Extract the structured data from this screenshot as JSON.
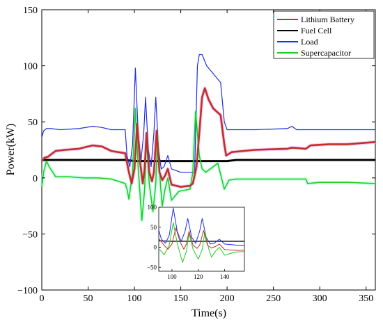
{
  "chart_data": {
    "type": "line",
    "xlabel": "Time(s)",
    "ylabel": "Power(kW)",
    "xlim": [
      0,
      360
    ],
    "ylim": [
      -100,
      150
    ],
    "xticks": [
      "0",
      "50",
      "100",
      "150",
      "200",
      "250",
      "300",
      "350"
    ],
    "yticks": [
      "150",
      "100",
      "50",
      "0",
      "−50",
      "−100"
    ],
    "legend_position": "top-right",
    "grid": false,
    "series": [
      {
        "name": "Lithium Battery",
        "color": "#c0302b",
        "points": [
          [
            0,
            15
          ],
          [
            3,
            18
          ],
          [
            7,
            19
          ],
          [
            10,
            21
          ],
          [
            15,
            24
          ],
          [
            25,
            25
          ],
          [
            40,
            26
          ],
          [
            55,
            29
          ],
          [
            65,
            28
          ],
          [
            75,
            24
          ],
          [
            90,
            22
          ],
          [
            94,
            5
          ],
          [
            97,
            -5
          ],
          [
            100,
            8
          ],
          [
            103,
            48
          ],
          [
            106,
            15
          ],
          [
            109,
            -5
          ],
          [
            111,
            8
          ],
          [
            113,
            40
          ],
          [
            116,
            5
          ],
          [
            119,
            -3
          ],
          [
            121,
            5
          ],
          [
            124,
            42
          ],
          [
            127,
            5
          ],
          [
            130,
            -2
          ],
          [
            133,
            2
          ],
          [
            136,
            8
          ],
          [
            140,
            -6
          ],
          [
            150,
            -8
          ],
          [
            160,
            -7
          ],
          [
            163,
            -5
          ],
          [
            167,
            10
          ],
          [
            170,
            40
          ],
          [
            173,
            72
          ],
          [
            176,
            80
          ],
          [
            180,
            70
          ],
          [
            185,
            62
          ],
          [
            193,
            56
          ],
          [
            197,
            30
          ],
          [
            199,
            20
          ],
          [
            205,
            23
          ],
          [
            230,
            25
          ],
          [
            265,
            26
          ],
          [
            270,
            27
          ],
          [
            285,
            26
          ],
          [
            290,
            29
          ],
          [
            310,
            30
          ],
          [
            330,
            30
          ],
          [
            360,
            32
          ]
        ]
      },
      {
        "name": "Fuel Cell",
        "color": "#000000",
        "points": [
          [
            0,
            16
          ],
          [
            90,
            16
          ],
          [
            100,
            15
          ],
          [
            160,
            15
          ],
          [
            200,
            15
          ],
          [
            210,
            16
          ],
          [
            360,
            16
          ]
        ]
      },
      {
        "name": "Load",
        "color": "#1f2fe0",
        "points": [
          [
            0,
            36
          ],
          [
            2,
            42
          ],
          [
            5,
            44
          ],
          [
            10,
            44
          ],
          [
            20,
            43
          ],
          [
            40,
            44
          ],
          [
            55,
            46
          ],
          [
            65,
            45
          ],
          [
            75,
            43
          ],
          [
            90,
            43
          ],
          [
            92,
            20
          ],
          [
            95,
            10
          ],
          [
            98,
            30
          ],
          [
            101,
            98
          ],
          [
            104,
            40
          ],
          [
            107,
            15
          ],
          [
            110,
            40
          ],
          [
            112,
            72
          ],
          [
            115,
            25
          ],
          [
            118,
            10
          ],
          [
            121,
            40
          ],
          [
            123,
            72
          ],
          [
            126,
            25
          ],
          [
            129,
            8
          ],
          [
            132,
            10
          ],
          [
            136,
            20
          ],
          [
            140,
            8
          ],
          [
            150,
            5
          ],
          [
            165,
            5
          ],
          [
            168,
            100
          ],
          [
            170,
            110
          ],
          [
            173,
            110
          ],
          [
            178,
            100
          ],
          [
            185,
            93
          ],
          [
            193,
            85
          ],
          [
            197,
            50
          ],
          [
            200,
            43
          ],
          [
            230,
            43
          ],
          [
            265,
            44
          ],
          [
            270,
            46
          ],
          [
            275,
            43
          ],
          [
            360,
            43
          ]
        ]
      },
      {
        "name": "Supercapacitor",
        "color": "#22cc22",
        "points": [
          [
            0,
            -8
          ],
          [
            2,
            5
          ],
          [
            5,
            15
          ],
          [
            8,
            10
          ],
          [
            15,
            1
          ],
          [
            30,
            1
          ],
          [
            45,
            0
          ],
          [
            60,
            0
          ],
          [
            75,
            -1
          ],
          [
            90,
            -5
          ],
          [
            92,
            -10
          ],
          [
            94,
            -19
          ],
          [
            98,
            5
          ],
          [
            101,
            62
          ],
          [
            104,
            10
          ],
          [
            108,
            -38
          ],
          [
            111,
            -10
          ],
          [
            113,
            35
          ],
          [
            116,
            -5
          ],
          [
            120,
            -30
          ],
          [
            123,
            -5
          ],
          [
            125,
            38
          ],
          [
            128,
            -5
          ],
          [
            130,
            -25
          ],
          [
            133,
            -10
          ],
          [
            136,
            0
          ],
          [
            140,
            -20
          ],
          [
            148,
            -12
          ],
          [
            160,
            -10
          ],
          [
            163,
            5
          ],
          [
            166,
            59
          ],
          [
            170,
            20
          ],
          [
            173,
            8
          ],
          [
            177,
            5
          ],
          [
            190,
            13
          ],
          [
            197,
            -10
          ],
          [
            202,
            -2
          ],
          [
            210,
            -1
          ],
          [
            250,
            -1
          ],
          [
            285,
            -1
          ],
          [
            287,
            -5
          ],
          [
            300,
            -4
          ],
          [
            330,
            -4
          ],
          [
            360,
            -5
          ]
        ]
      }
    ],
    "inset": {
      "xlim": [
        90,
        155
      ],
      "ylim": [
        -60,
        100
      ],
      "xticks": [
        "100",
        "120",
        "140"
      ],
      "yticks": [
        "100",
        "50",
        "0",
        "−50"
      ]
    }
  }
}
